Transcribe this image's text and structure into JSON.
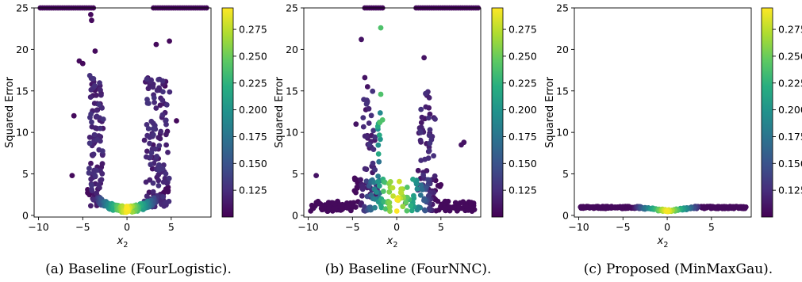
{
  "chart_data": [
    {
      "type": "scatter",
      "caption": "(a) Baseline (FourLogistic).",
      "xlabel": "x",
      "xlabel_subscript": "2",
      "ylabel": "Squared Error",
      "xlim": [
        -10.5,
        9.5
      ],
      "ylim": [
        -0.2,
        25
      ],
      "xticks": [
        -10,
        -5,
        0,
        5
      ],
      "yticks": [
        0,
        5,
        10,
        15,
        20,
        25
      ],
      "colorbar": {
        "vmin": 0.1,
        "vmax": 0.295,
        "ticks": [
          0.125,
          0.15,
          0.175,
          0.2,
          0.225,
          0.25,
          0.275
        ],
        "colormap": "viridis"
      },
      "points_note_x": [
        -9.5,
        -8.3,
        -7.0,
        -6.0,
        -5.4,
        -4.9,
        -4.5,
        -4.2,
        -4.0,
        -3.8,
        -3.5,
        -3.0,
        -2.5,
        -2.0,
        -1.5,
        -1.0,
        -0.5,
        0.0,
        0.5,
        1.0,
        1.5,
        2.0,
        2.5,
        3.0,
        3.3,
        3.6,
        4.0,
        4.3,
        4.6,
        5.0,
        5.5,
        6.0,
        7.0,
        8.0,
        9.0
      ],
      "points_note_y": [
        25,
        25,
        25,
        25,
        18.7,
        19.8,
        14.2,
        12.0,
        9.0,
        6.5,
        2.8,
        1.8,
        1.2,
        0.9,
        0.7,
        0.6,
        0.5,
        0.45,
        0.5,
        0.7,
        1.0,
        1.5,
        2.6,
        4.0,
        6.0,
        8.5,
        11.5,
        15.0,
        19.0,
        21.0,
        11.4,
        25,
        25,
        25,
        25
      ]
    },
    {
      "type": "scatter",
      "caption": "(b) Baseline (FourNNC).",
      "xlabel": "x",
      "xlabel_subscript": "2",
      "ylabel": "Squared Error",
      "xlim": [
        -10.5,
        9.5
      ],
      "ylim": [
        -0.2,
        25
      ],
      "xticks": [
        -10,
        -5,
        0,
        5
      ],
      "yticks": [
        0,
        5,
        10,
        15,
        20,
        25
      ],
      "colorbar": {
        "vmin": 0.1,
        "vmax": 0.295,
        "ticks": [
          0.125,
          0.15,
          0.175,
          0.2,
          0.225,
          0.25,
          0.275
        ],
        "colormap": "viridis"
      },
      "points_note_x": [
        -9.6,
        -9.0,
        -8.0,
        -7.0,
        -6.0,
        -5.0,
        -4.5,
        -4.0,
        -3.5,
        -3.0,
        -2.5,
        -2.0,
        -1.8,
        -1.5,
        -1.0,
        -0.5,
        0.0,
        0.5,
        1.0,
        2.0,
        2.5,
        3.0,
        3.5,
        4.0,
        5.0,
        6.0,
        7.0,
        7.8,
        8.5
      ],
      "points_note_y": [
        1.0,
        1.0,
        1.5,
        1.2,
        4.0,
        3.0,
        9.0,
        21.2,
        16.5,
        13.0,
        10.5,
        22.6,
        14.6,
        11.5,
        1.2,
        1.0,
        0.8,
        0.9,
        1.0,
        1.2,
        2.5,
        19.0,
        11.2,
        7.0,
        6.0,
        4.8,
        8.8,
        1.2,
        1.0
      ]
    },
    {
      "type": "scatter",
      "caption": "(c) Proposed (MinMaxGau).",
      "xlabel": "x",
      "xlabel_subscript": "2",
      "ylabel": "Squared Error",
      "xlim": [
        -10.5,
        9.5
      ],
      "ylim": [
        -0.2,
        25
      ],
      "xticks": [
        -10,
        -5,
        0,
        5
      ],
      "yticks": [
        0,
        5,
        10,
        15,
        20,
        25
      ],
      "colorbar": {
        "vmin": 0.1,
        "vmax": 0.295,
        "ticks": [
          0.125,
          0.15,
          0.175,
          0.2,
          0.225,
          0.25,
          0.275
        ],
        "colormap": "viridis"
      },
      "points_note_x": [
        -9.8,
        -9.0,
        -8.0,
        -7.0,
        -6.0,
        -5.0,
        -4.0,
        -3.0,
        -2.0,
        -1.0,
        0.0,
        1.0,
        2.0,
        3.0,
        4.0,
        5.0,
        6.0,
        7.0,
        8.0,
        9.0
      ],
      "points_note_y": [
        1.0,
        1.0,
        1.0,
        1.0,
        1.0,
        1.0,
        1.0,
        0.9,
        0.8,
        0.7,
        0.6,
        0.75,
        0.95,
        1.0,
        1.0,
        1.0,
        1.0,
        1.0,
        1.0,
        1.0
      ]
    }
  ]
}
